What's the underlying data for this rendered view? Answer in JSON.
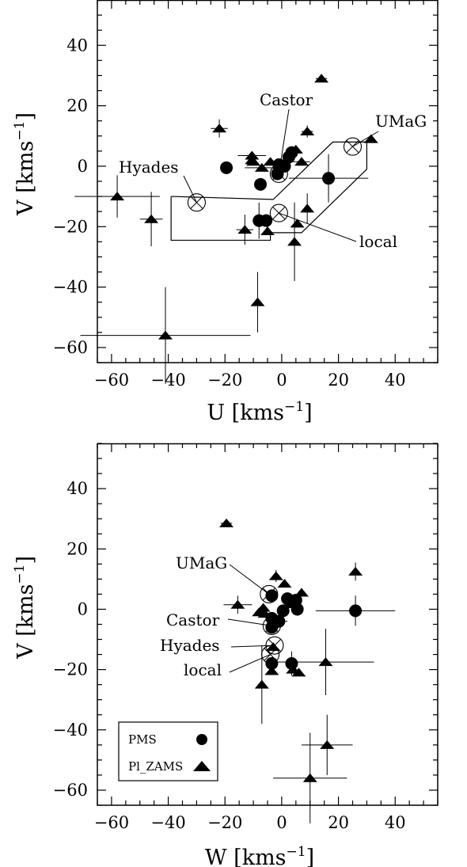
{
  "colors": {
    "marker": "#000000",
    "axes": "#000000",
    "background": "#ffffff"
  },
  "chart_data": [
    {
      "type": "scatter",
      "xlabel": "U [kms",
      "ylabel": "V [kms",
      "unit_exp": "−1",
      "xlim": [
        -65,
        55
      ],
      "ylim": [
        -65,
        55
      ],
      "xticks": [
        -60,
        -40,
        -20,
        0,
        20,
        40
      ],
      "yticks": [
        -60,
        -40,
        -20,
        0,
        20,
        40
      ],
      "series": [
        {
          "marker": "circle",
          "points": [
            {
              "x": -19.5,
              "y": -0.5,
              "ex": 0,
              "ey": 0
            },
            {
              "x": -7.5,
              "y": -6,
              "ex": 0,
              "ey": 0
            },
            {
              "x": -8,
              "y": -18,
              "ex": 0,
              "ey": 6
            },
            {
              "x": -5.5,
              "y": -18,
              "ex": 0,
              "ey": 0
            },
            {
              "x": -1.5,
              "y": -2.5,
              "ex": 0,
              "ey": 0
            },
            {
              "x": -1,
              "y": 0.5,
              "ex": 0,
              "ey": 0
            },
            {
              "x": 1,
              "y": 0,
              "ex": 0,
              "ey": 0
            },
            {
              "x": 2.5,
              "y": 3,
              "ex": 0,
              "ey": 0
            },
            {
              "x": 3.5,
              "y": 4.5,
              "ex": 0,
              "ey": 0
            },
            {
              "x": 16.5,
              "y": -4,
              "ex": 14,
              "ey": 8
            }
          ]
        },
        {
          "marker": "triangle",
          "points": [
            {
              "x": -58,
              "y": -10,
              "ex": 15,
              "ey": 7
            },
            {
              "x": -46,
              "y": -17.5,
              "ex": 4,
              "ey": 9
            },
            {
              "x": -41,
              "y": -56,
              "ex": 30,
              "ey": 16
            },
            {
              "x": -22,
              "y": 12.5,
              "ex": 3,
              "ey": 3
            },
            {
              "x": -13,
              "y": -21,
              "ex": 3,
              "ey": 5
            },
            {
              "x": -10.5,
              "y": 3.5,
              "ex": 5,
              "ey": 0
            },
            {
              "x": -10.5,
              "y": 2,
              "ex": 0,
              "ey": 0
            },
            {
              "x": -10,
              "y": 1.5,
              "ex": 0,
              "ey": 0
            },
            {
              "x": -8.5,
              "y": -45,
              "ex": 0,
              "ey": 10
            },
            {
              "x": -7,
              "y": -0.5,
              "ex": 6,
              "ey": 0
            },
            {
              "x": -5,
              "y": -21.5,
              "ex": 0,
              "ey": 0
            },
            {
              "x": -4,
              "y": 1.5,
              "ex": 0,
              "ey": 0
            },
            {
              "x": 4.5,
              "y": -25,
              "ex": 0,
              "ey": 13
            },
            {
              "x": 5,
              "y": 5.5,
              "ex": 0,
              "ey": 0
            },
            {
              "x": 5.5,
              "y": -19,
              "ex": 0,
              "ey": 0
            },
            {
              "x": 7,
              "y": 1.5,
              "ex": 3,
              "ey": 0
            },
            {
              "x": 9,
              "y": 11.5,
              "ex": 2,
              "ey": 2
            },
            {
              "x": 9,
              "y": -14,
              "ex": 0,
              "ey": 5
            },
            {
              "x": 14,
              "y": 29,
              "ex": 2,
              "ey": 0
            },
            {
              "x": 31.5,
              "y": 9,
              "ex": 0,
              "ey": 0
            }
          ]
        }
      ],
      "groups": [
        {
          "name": "Hyades",
          "x": -30,
          "y": -12,
          "label": "Hyades"
        },
        {
          "name": "Castor",
          "x": -1,
          "y": -2.5,
          "label": "Castor"
        },
        {
          "name": "UMaG",
          "x": 25,
          "y": 6.5,
          "label": "UMaG"
        },
        {
          "name": "local",
          "x": -1,
          "y": -15.5,
          "label": "local"
        }
      ],
      "region": [
        [
          -39,
          -10
        ],
        [
          -39,
          -24.5
        ],
        [
          -4,
          -24.5
        ],
        [
          -4,
          -22
        ],
        [
          7,
          -22
        ],
        [
          30,
          -1
        ],
        [
          30,
          8
        ],
        [
          18,
          8
        ],
        [
          -3,
          -11
        ],
        [
          -39,
          -10
        ]
      ],
      "legend": null
    },
    {
      "type": "scatter",
      "xlabel": "W [kms",
      "ylabel": "V [kms",
      "unit_exp": "−1",
      "xlim": [
        -65,
        55
      ],
      "ylim": [
        -65,
        55
      ],
      "xticks": [
        -60,
        -40,
        -20,
        0,
        20,
        40
      ],
      "yticks": [
        -60,
        -40,
        -20,
        0,
        20,
        40
      ],
      "series": [
        {
          "marker": "circle",
          "points": [
            {
              "x": -3.5,
              "y": 4.5,
              "ex": 0,
              "ey": 0
            },
            {
              "x": -3.5,
              "y": -3,
              "ex": 0,
              "ey": 0
            },
            {
              "x": -3.5,
              "y": -6,
              "ex": 0,
              "ey": 0
            },
            {
              "x": -1,
              "y": -4,
              "ex": 3,
              "ey": 0
            },
            {
              "x": 0.5,
              "y": -0.5,
              "ex": 0,
              "ey": 0
            },
            {
              "x": 2,
              "y": 3.5,
              "ex": 0,
              "ey": 0
            },
            {
              "x": 3,
              "y": 2.5,
              "ex": 0,
              "ey": 0
            },
            {
              "x": 5,
              "y": 3,
              "ex": 0,
              "ey": 0
            },
            {
              "x": 5.5,
              "y": 0,
              "ex": 0,
              "ey": 0
            },
            {
              "x": -3.5,
              "y": -18,
              "ex": 0,
              "ey": 0
            },
            {
              "x": 3.5,
              "y": -18,
              "ex": 0,
              "ey": 4
            },
            {
              "x": 26,
              "y": -0.5,
              "ex": 14,
              "ey": 5
            }
          ]
        },
        {
          "marker": "triangle",
          "points": [
            {
              "x": -19.5,
              "y": 28.5,
              "ex": 2,
              "ey": 0
            },
            {
              "x": -15.5,
              "y": 1.5,
              "ex": 5,
              "ey": 3
            },
            {
              "x": -8,
              "y": -1,
              "ex": 0,
              "ey": 0
            },
            {
              "x": -7,
              "y": -25,
              "ex": 0,
              "ey": 13
            },
            {
              "x": -6.5,
              "y": 0.5,
              "ex": 0,
              "ey": 0
            },
            {
              "x": -6,
              "y": -1.5,
              "ex": 0,
              "ey": 0
            },
            {
              "x": -3,
              "y": -12.5,
              "ex": 0,
              "ey": 0
            },
            {
              "x": -3.5,
              "y": -20.5,
              "ex": 0,
              "ey": 0
            },
            {
              "x": -2,
              "y": 11,
              "ex": 0,
              "ey": 2
            },
            {
              "x": 1,
              "y": 8.5,
              "ex": 0,
              "ey": 0
            },
            {
              "x": 4,
              "y": -20,
              "ex": 0,
              "ey": 0
            },
            {
              "x": 6,
              "y": -21,
              "ex": 0,
              "ey": 0
            },
            {
              "x": 7,
              "y": 5.5,
              "ex": 0,
              "ey": 0
            },
            {
              "x": 15.5,
              "y": -17.5,
              "ex": 17,
              "ey": 11
            },
            {
              "x": 16,
              "y": -45,
              "ex": 9,
              "ey": 10
            },
            {
              "x": 10,
              "y": -56,
              "ex": 13,
              "ey": 15
            },
            {
              "x": 26,
              "y": 12.5,
              "ex": 0,
              "ey": 3
            }
          ]
        }
      ],
      "groups": [
        {
          "name": "UMaG",
          "x": -4.5,
          "y": 5,
          "label": "UMaG"
        },
        {
          "name": "Castor",
          "x": -3.5,
          "y": -5.5,
          "label": "Castor"
        },
        {
          "name": "Hyades",
          "x": -2.5,
          "y": -12,
          "label": "Hyades"
        },
        {
          "name": "local",
          "x": -4,
          "y": -15,
          "label": "local"
        }
      ],
      "region": null,
      "legend": {
        "placement": "bottom-left",
        "entries": [
          {
            "label": "PMS",
            "marker": "circle"
          },
          {
            "label": "Pl_ZAMS",
            "marker": "triangle"
          }
        ]
      }
    }
  ]
}
